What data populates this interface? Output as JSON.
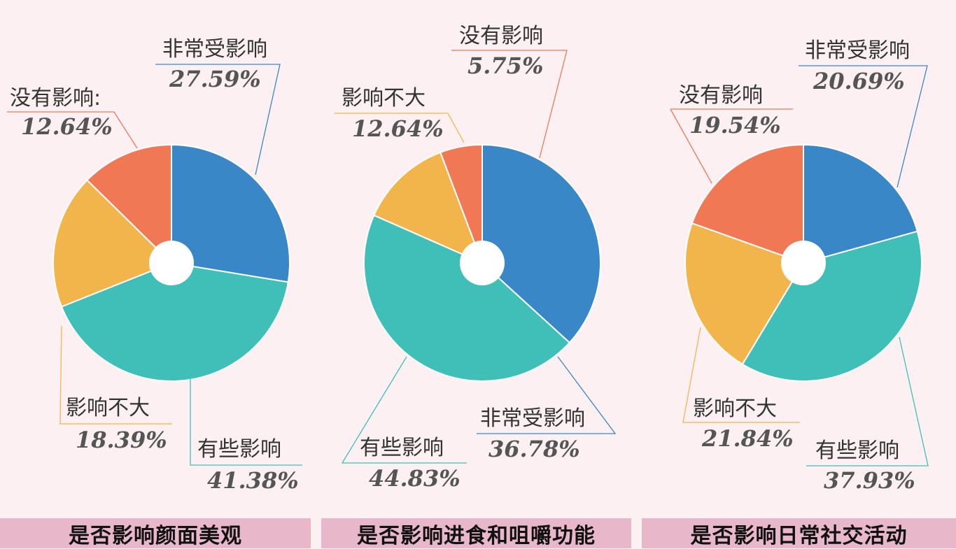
{
  "colors": {
    "非常受影响": "#3a87c8",
    "有些影响": "#3fbfb7",
    "影响不大": "#f2b54c",
    "没有影响": "#f07855"
  },
  "chart_data": [
    {
      "type": "pie",
      "title": "是否影响颜面美观",
      "slices": [
        {
          "label": "非常受影响",
          "value": 27.59,
          "pct_text": "27.59%"
        },
        {
          "label": "有些影响",
          "value": 41.38,
          "pct_text": "41.38%"
        },
        {
          "label": "影响不大",
          "value": 18.39,
          "pct_text": "18.39%"
        },
        {
          "label": "没有影响:",
          "value": 12.64,
          "pct_text": "12.64%"
        }
      ]
    },
    {
      "type": "pie",
      "title": "是否影响进食和咀嚼功能",
      "slices": [
        {
          "label": "非常受影响",
          "value": 36.78,
          "pct_text": "36.78%"
        },
        {
          "label": "有些影响",
          "value": 44.83,
          "pct_text": "44.83%"
        },
        {
          "label": "影响不大",
          "value": 12.64,
          "pct_text": "12.64%"
        },
        {
          "label": "没有影响",
          "value": 5.75,
          "pct_text": "5.75%"
        }
      ]
    },
    {
      "type": "pie",
      "title": "是否影响日常社交活动",
      "slices": [
        {
          "label": "非常受影响",
          "value": 20.69,
          "pct_text": "20.69%"
        },
        {
          "label": "有些影响",
          "value": 37.93,
          "pct_text": "37.93%"
        },
        {
          "label": "影响不大",
          "value": 21.84,
          "pct_text": "21.84%"
        },
        {
          "label": "没有影响",
          "value": 19.54,
          "pct_text": "19.54%"
        }
      ]
    }
  ]
}
